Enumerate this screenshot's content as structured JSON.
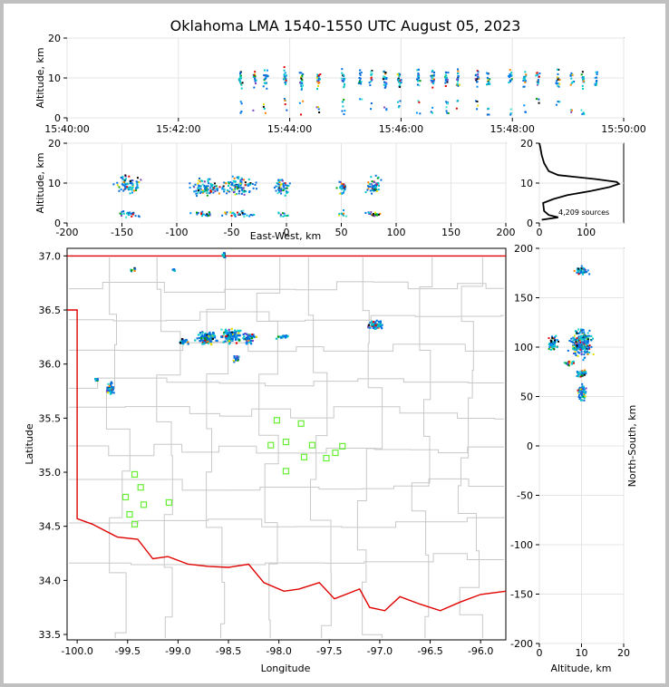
{
  "chart_data": [
    {
      "type": "scatter",
      "panel": "altitude-time",
      "title": "Oklahoma LMA 1540-1550 UTC August 05, 2023",
      "xlabel": "",
      "ylabel": "Altitude, km",
      "ylim": [
        0,
        20
      ],
      "x_ticks": [
        "15:40:00",
        "15:42:00",
        "15:44:00",
        "15:46:00",
        "15:48:00",
        "15:50:00"
      ],
      "y_ticks": [
        0,
        10,
        20
      ],
      "grid": true,
      "source_columns_minutes": [
        3.1,
        3.35,
        3.55,
        3.9,
        4.2,
        4.5,
        4.95,
        5.25,
        5.45,
        5.7,
        5.95,
        6.3,
        6.55,
        6.8,
        7.0,
        7.35,
        7.55,
        7.95,
        8.2,
        8.45,
        8.8,
        9.05,
        9.25,
        9.5
      ]
    },
    {
      "type": "scatter",
      "panel": "altitude-east-west",
      "xlabel": "East-West, km",
      "ylabel": "Altitude, km",
      "xlim": [
        -200,
        200
      ],
      "ylim": [
        0,
        20
      ],
      "x_ticks": [
        -200,
        -150,
        -100,
        -50,
        0,
        50,
        100,
        150,
        200
      ],
      "y_ticks": [
        0,
        10,
        20
      ],
      "grid": true,
      "clusters_km": [
        {
          "x": -145,
          "z": 10,
          "w": 16
        },
        {
          "x": -75,
          "z": 9,
          "w": 18
        },
        {
          "x": -45,
          "z": 9.5,
          "w": 22
        },
        {
          "x": -5,
          "z": 9.5,
          "w": 10
        },
        {
          "x": 78,
          "z": 9.5,
          "w": 12
        },
        {
          "x": 50,
          "z": 9,
          "w": 6
        }
      ]
    },
    {
      "type": "line",
      "panel": "altitude-histogram",
      "xlim": [
        0,
        180
      ],
      "ylim": [
        0,
        20
      ],
      "x_ticks": [
        0,
        100
      ],
      "y_ticks": [
        0,
        10,
        20
      ],
      "annotation": "4,209 sources",
      "profile": [
        {
          "alt": 0.8,
          "count": 5
        },
        {
          "alt": 1.4,
          "count": 40
        },
        {
          "alt": 2.0,
          "count": 20
        },
        {
          "alt": 3.0,
          "count": 10
        },
        {
          "alt": 5.0,
          "count": 8
        },
        {
          "alt": 6.0,
          "count": 30
        },
        {
          "alt": 7.0,
          "count": 60
        },
        {
          "alt": 8.0,
          "count": 110
        },
        {
          "alt": 9.0,
          "count": 150
        },
        {
          "alt": 9.8,
          "count": 170
        },
        {
          "alt": 10.3,
          "count": 165
        },
        {
          "alt": 11.0,
          "count": 120
        },
        {
          "alt": 12.0,
          "count": 40
        },
        {
          "alt": 13.0,
          "count": 20
        },
        {
          "alt": 15.0,
          "count": 10
        },
        {
          "alt": 17.0,
          "count": 5
        },
        {
          "alt": 19.0,
          "count": 2
        },
        {
          "alt": 20.0,
          "count": 0
        }
      ]
    },
    {
      "type": "scatter",
      "panel": "plan-view-map",
      "xlabel": "Longitude",
      "ylabel": "Latitude",
      "xlim": [
        -100.1,
        -95.75
      ],
      "ylim": [
        33.45,
        37.07
      ],
      "x_ticks": [
        "-100.0",
        "-99.5",
        "-99.0",
        "-98.5",
        "-98.0",
        "-97.5",
        "-97.0",
        "-96.5",
        "-96.0"
      ],
      "y_ticks": [
        "33.5",
        "34.0",
        "34.5",
        "35.0",
        "35.5",
        "36.0",
        "36.5",
        "37.0"
      ],
      "stations": [
        {
          "lon": -98.02,
          "lat": 35.48
        },
        {
          "lon": -97.78,
          "lat": 35.45
        },
        {
          "lon": -98.08,
          "lat": 35.25
        },
        {
          "lon": -97.93,
          "lat": 35.28
        },
        {
          "lon": -97.67,
          "lat": 35.25
        },
        {
          "lon": -97.37,
          "lat": 35.24
        },
        {
          "lon": -97.75,
          "lat": 35.14
        },
        {
          "lon": -97.53,
          "lat": 35.13
        },
        {
          "lon": -97.44,
          "lat": 35.18
        },
        {
          "lon": -97.93,
          "lat": 35.01
        },
        {
          "lon": -99.43,
          "lat": 34.98
        },
        {
          "lon": -99.37,
          "lat": 34.86
        },
        {
          "lon": -99.52,
          "lat": 34.77
        },
        {
          "lon": -99.09,
          "lat": 34.72
        },
        {
          "lon": -99.34,
          "lat": 34.7
        },
        {
          "lon": -99.48,
          "lat": 34.61
        },
        {
          "lon": -99.43,
          "lat": 34.52
        }
      ],
      "clusters": [
        {
          "lon": -98.72,
          "lat": 36.25,
          "w": 0.14,
          "h": 0.08
        },
        {
          "lon": -98.48,
          "lat": 36.27,
          "w": 0.15,
          "h": 0.09
        },
        {
          "lon": -98.3,
          "lat": 36.25,
          "w": 0.08,
          "h": 0.07
        },
        {
          "lon": -98.43,
          "lat": 36.06,
          "w": 0.05,
          "h": 0.04
        },
        {
          "lon": -98.95,
          "lat": 36.22,
          "w": 0.06,
          "h": 0.04
        },
        {
          "lon": -97.98,
          "lat": 36.26,
          "w": 0.09,
          "h": 0.03
        },
        {
          "lon": -99.68,
          "lat": 35.78,
          "w": 0.06,
          "h": 0.08
        },
        {
          "lon": -99.82,
          "lat": 35.87,
          "w": 0.03,
          "h": 0.02
        },
        {
          "lon": -97.05,
          "lat": 36.37,
          "w": 0.1,
          "h": 0.06
        },
        {
          "lon": -99.46,
          "lat": 36.88,
          "w": 0.04,
          "h": 0.02
        },
        {
          "lon": -98.55,
          "lat": 37.02,
          "w": 0.04,
          "h": 0.04
        },
        {
          "lon": -99.05,
          "lat": 36.88,
          "w": 0.02,
          "h": 0.02
        }
      ]
    },
    {
      "type": "scatter",
      "panel": "north-south-altitude",
      "xlabel": "Altitude, km",
      "ylabel": "North-South, km",
      "xlim": [
        0,
        20
      ],
      "ylim": [
        -200,
        200
      ],
      "x_ticks": [
        0,
        10,
        20
      ],
      "y_ticks": [
        -200,
        -150,
        -100,
        -50,
        0,
        50,
        100,
        150,
        200
      ],
      "clusters_km": [
        {
          "z": 9.5,
          "y": 105,
          "w": 3.5,
          "h": 18
        },
        {
          "z": 3,
          "y": 105,
          "w": 1.5,
          "h": 10
        },
        {
          "z": 10,
          "y": 55,
          "w": 1.5,
          "h": 12
        },
        {
          "z": 10,
          "y": 178,
          "w": 2.5,
          "h": 6
        },
        {
          "z": 9.5,
          "y": 75,
          "w": 2,
          "h": 6
        },
        {
          "z": 7,
          "y": 85,
          "w": 1.5,
          "h": 4
        }
      ]
    }
  ]
}
